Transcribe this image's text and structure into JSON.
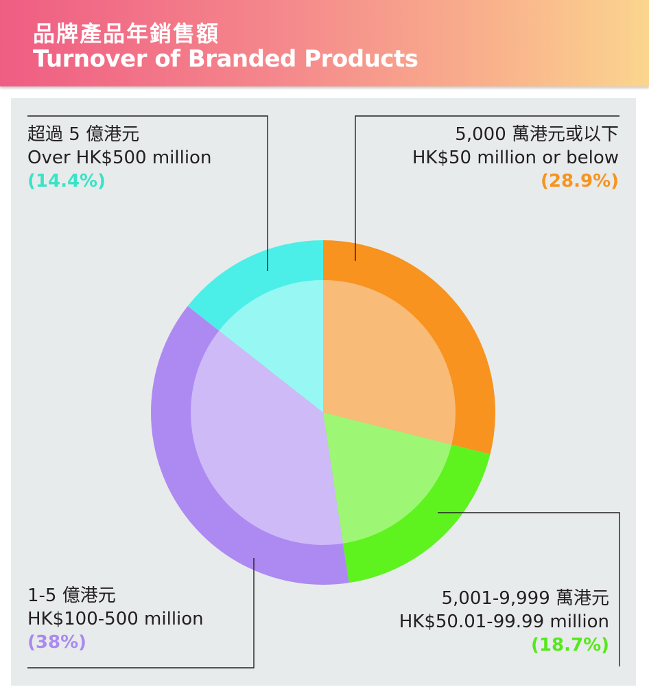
{
  "header": {
    "title_zh": "品牌產品年銷售額",
    "title_en": "Turnover of Branded Products"
  },
  "chart_data": {
    "type": "pie",
    "title": "品牌產品年銷售額 / Turnover of Branded Products",
    "slices": [
      {
        "label_zh": "5,000 萬港元或以下",
        "label_en": "HK$50 million or below",
        "value": 28.9,
        "display": "(28.9%)",
        "outer_color": "#f7931e",
        "inner_color": "#f8bb78",
        "text_color": "#f7931e"
      },
      {
        "label_zh": "5,001-9,999 萬港元",
        "label_en": "HK$50.01-99.99 million",
        "value": 18.7,
        "display": "(18.7%)",
        "outer_color": "#5ef21f",
        "inner_color": "#9df774",
        "text_color": "#55e81c"
      },
      {
        "label_zh": "1-5 億港元",
        "label_en": "HK$100-500 million",
        "value": 38,
        "display": "(38%)",
        "outer_color": "#ad8af2",
        "inner_color": "#cebaf7",
        "text_color": "#a98af0"
      },
      {
        "label_zh": "超過 5 億港元",
        "label_en": "Over HK$500 million",
        "value": 14.4,
        "display": "(14.4%)",
        "outer_color": "#4cefe8",
        "inner_color": "#97f8f3",
        "text_color": "#39e3c6"
      }
    ]
  }
}
